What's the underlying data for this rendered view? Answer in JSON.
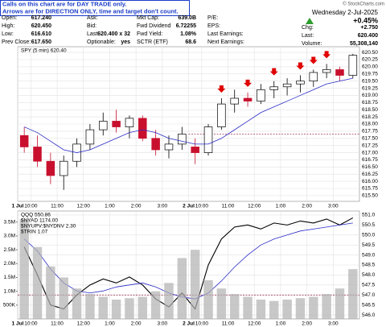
{
  "header": {
    "notice": [
      "Calls on this chart are for DAY TRADE only.",
      "Arrows are for DIRECTION ONLY, time and target don't count."
    ],
    "columns": [
      [
        {
          "label": "Open:",
          "value": "617.240"
        },
        {
          "label": "High:",
          "value": "620.450"
        },
        {
          "label": "Low:",
          "value": "616.610"
        },
        {
          "label": "Prev Close:",
          "value": "617.650"
        }
      ],
      [
        {
          "label": "Ask:"
        },
        {
          "label": "Bid:"
        },
        {
          "label": "Last:",
          "value": "620.400 x 32"
        },
        {
          "label": "Optionable:",
          "value": "yes"
        }
      ],
      [
        {
          "label": "Mkt Cap:",
          "value": "639.0B"
        },
        {
          "label": "Fwd Dividend",
          "value": "6.72255"
        },
        {
          "label": "Fwd Yield:",
          "value": "1.08%"
        },
        {
          "label": "SCTR (ETF)",
          "value": "68.6"
        }
      ],
      [
        {
          "label": "P/E:"
        },
        {
          "label": "EPS:"
        },
        {
          "label": "Last Earnings:"
        },
        {
          "label": "Next Earnings:"
        }
      ]
    ],
    "date": "Wednesday  2-Jul-2025",
    "change_pct": "+0.45%",
    "right": [
      {
        "label": "Chg:",
        "value": "+2.750"
      },
      {
        "label": "Last:",
        "value": "620.400"
      },
      {
        "label": "Volume:",
        "value": "55,308,140"
      }
    ],
    "credit": "© StockCharts.com"
  },
  "chart_data": [
    {
      "type": "candlestick",
      "legend": "SPY (5 min) 620.40",
      "x": [
        0,
        1,
        2,
        3,
        4,
        5,
        6,
        7,
        8,
        9,
        10,
        11,
        12,
        13,
        14,
        15,
        16,
        17,
        18,
        19,
        20,
        21,
        22,
        23,
        24,
        25
      ],
      "open": [
        617.6,
        617.2,
        616.7,
        616.2,
        616.7,
        617.3,
        617.8,
        618.1,
        617.9,
        618.2,
        617.5,
        617.1,
        617.3,
        617.2,
        617.0,
        617.9,
        618.7,
        618.9,
        618.8,
        619.2,
        619.3,
        619.4,
        619.5,
        619.8,
        619.9,
        619.7
      ],
      "high": [
        617.9,
        617.6,
        617.0,
        616.9,
        617.5,
        618.0,
        618.4,
        618.5,
        618.3,
        618.3,
        617.8,
        617.6,
        617.9,
        617.5,
        618.0,
        618.9,
        619.2,
        619.1,
        619.4,
        619.5,
        619.6,
        619.7,
        619.9,
        620.1,
        620.0,
        620.45
      ],
      "low": [
        617.0,
        616.5,
        615.9,
        615.7,
        616.5,
        617.1,
        617.6,
        617.7,
        617.5,
        617.4,
        616.9,
        616.8,
        617.1,
        616.6,
        616.9,
        617.8,
        618.4,
        618.6,
        618.7,
        618.9,
        619.0,
        619.1,
        619.3,
        619.6,
        619.5,
        619.6
      ],
      "close": [
        617.2,
        616.7,
        616.2,
        616.7,
        617.3,
        617.8,
        618.1,
        617.9,
        618.2,
        617.5,
        617.1,
        617.3,
        617.65,
        617.0,
        617.9,
        618.7,
        618.9,
        618.8,
        619.2,
        619.3,
        619.4,
        619.5,
        619.8,
        619.9,
        619.7,
        620.4
      ],
      "up_color": "#000000",
      "down_color": "#c8102e",
      "series": [
        {
          "color": "#2a2ac8",
          "values": [
            617.9,
            617.7,
            617.4,
            617.1,
            617.0,
            617.1,
            617.3,
            617.5,
            617.7,
            617.8,
            617.7,
            617.5,
            617.4,
            617.3,
            617.3,
            617.5,
            617.8,
            618.1,
            618.4,
            618.6,
            618.8,
            619.0,
            619.2,
            619.4,
            619.5,
            619.6
          ]
        }
      ],
      "ref_line": 617.65,
      "ylim": [
        615.3,
        620.7
      ],
      "yticks": [
        {
          "value": 615.5,
          "label": "615.50"
        },
        615.75,
        {
          "value": 616,
          "label": "616.00"
        },
        616.25,
        {
          "value": 616.5,
          "label": "616.50"
        },
        616.75,
        {
          "value": 617,
          "label": "617.00"
        },
        617.25,
        {
          "value": 617.5,
          "label": "617.50"
        },
        617.75,
        {
          "value": 618,
          "label": "618.00"
        },
        618.25,
        {
          "value": 618.5,
          "label": "618.50"
        },
        618.75,
        {
          "value": 619,
          "label": "619.00"
        },
        619.25,
        {
          "value": 619.5,
          "label": "619.50"
        },
        619.75,
        {
          "value": 620,
          "label": "620.00"
        },
        620.25,
        {
          "value": 620.5,
          "label": "620.50"
        }
      ],
      "xticks": [
        {
          "value": 0,
          "label": "1 Jul"
        },
        {
          "value": 1,
          "label": "10:00"
        },
        {
          "value": 3,
          "label": "11:00"
        },
        {
          "value": 5,
          "label": "12:00"
        },
        {
          "value": 7,
          "label": "1:00"
        },
        {
          "value": 9,
          "label": "2:00"
        },
        {
          "value": 11,
          "label": "3:00"
        },
        {
          "value": 13,
          "label": "2 Jul"
        },
        {
          "value": 14,
          "label": "10:00"
        },
        {
          "value": 16,
          "label": "11:00"
        },
        {
          "value": 18,
          "label": "12:00"
        },
        {
          "value": 20,
          "label": "1:00"
        },
        {
          "value": 22,
          "label": "2:00"
        },
        {
          "value": 24,
          "label": "3:00"
        }
      ],
      "grid": true
    },
    {
      "type": "line",
      "legend": "QQQ 550.86",
      "overlays": [
        "$NYAD 1174.00",
        "$NYUPV:$NYDNV 2.30",
        "$TRIN 1.07"
      ],
      "x": [
        0,
        1,
        2,
        3,
        4,
        5,
        6,
        7,
        8,
        9,
        10,
        11,
        12,
        13,
        14,
        15,
        16,
        17,
        18,
        19,
        20,
        21,
        22,
        23,
        24,
        25
      ],
      "series": [
        {
          "color": "#000000",
          "values": [
            549.4,
            548.0,
            546.5,
            546.3,
            547.0,
            547.5,
            547.8,
            547.6,
            547.9,
            547.5,
            546.8,
            546.4,
            547.1,
            546.3,
            548.5,
            549.8,
            550.4,
            550.5,
            550.3,
            550.6,
            550.5,
            550.7,
            550.6,
            550.8,
            550.5,
            550.86
          ]
        },
        {
          "color": "#2a2ac8",
          "values": [
            549.8,
            549.2,
            548.3,
            547.6,
            547.2,
            547.1,
            547.2,
            547.4,
            547.5,
            547.6,
            547.4,
            547.1,
            546.9,
            546.8,
            547.1,
            547.7,
            548.4,
            549.0,
            549.5,
            549.8,
            550.0,
            550.2,
            550.3,
            550.4,
            550.5,
            550.6
          ]
        },
        {
          "color": "#b0b0b0",
          "axis": "y2",
          "style": "bar",
          "values": [
            3600000,
            2600000,
            1900000,
            1500000,
            1100000,
            900000,
            800000,
            700000,
            750000,
            800000,
            1000000,
            1300000,
            2200000,
            2500000,
            1400000,
            1100000,
            900000,
            800000,
            700000,
            650000,
            700000,
            750000,
            800000,
            900000,
            1100000,
            1800000
          ]
        }
      ],
      "ref_line": 547,
      "ylim": [
        545.8,
        551.2
      ],
      "yticks": [
        {
          "value": 546,
          "label": "546.0"
        },
        546.5,
        {
          "value": 547,
          "label": "547.0"
        },
        547.5,
        {
          "value": 548,
          "label": "548.0"
        },
        548.5,
        {
          "value": 549,
          "label": "549.0"
        },
        549.5,
        {
          "value": 550,
          "label": "550.0"
        },
        550.5,
        {
          "value": 551,
          "label": "551.0"
        }
      ],
      "y2lim": [
        0,
        3900000
      ],
      "y2ticks": [
        {
          "value": 500000,
          "label": "500K"
        },
        {
          "value": 1000000,
          "label": "1.0M"
        },
        {
          "value": 1500000,
          "label": "1.5M"
        },
        {
          "value": 2000000,
          "label": "2.0M"
        },
        {
          "value": 2500000,
          "label": "2.5M"
        },
        {
          "value": 3000000,
          "label": "3.0M"
        },
        {
          "value": 3500000,
          "label": "3.5M"
        }
      ],
      "xticks": [
        {
          "value": 0,
          "label": "1 Jul"
        },
        {
          "value": 1,
          "label": "10:00"
        },
        {
          "value": 3,
          "label": "11:00"
        },
        {
          "value": 5,
          "label": "12:00"
        },
        {
          "value": 7,
          "label": "1:00"
        },
        {
          "value": 9,
          "label": "2:00"
        },
        {
          "value": 11,
          "label": "3:00"
        },
        {
          "value": 13,
          "label": "2 Jul"
        },
        {
          "value": 14,
          "label": "10:00"
        },
        {
          "value": 16,
          "label": "11:00"
        },
        {
          "value": 18,
          "label": "12:00"
        },
        {
          "value": 20,
          "label": "1:00"
        },
        {
          "value": 22,
          "label": "2:00"
        },
        {
          "value": 24,
          "label": "3:00"
        }
      ],
      "grid": true
    }
  ]
}
